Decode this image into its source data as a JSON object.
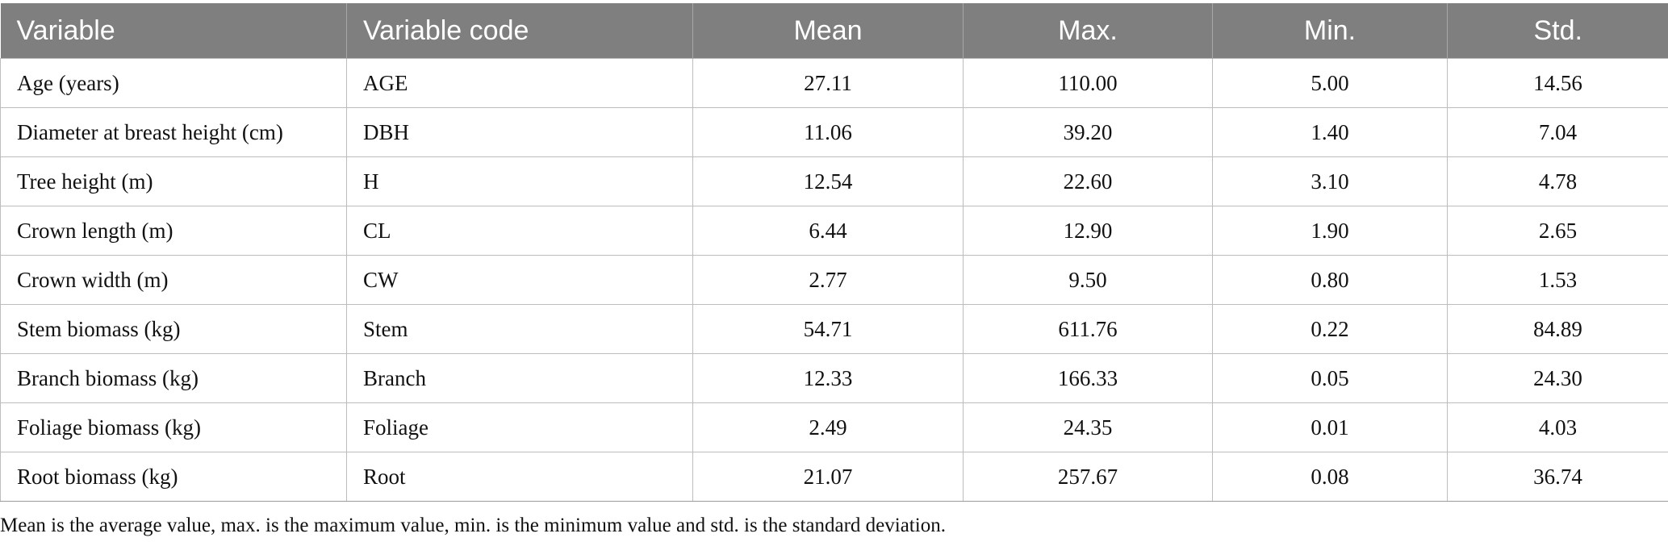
{
  "table": {
    "headers": [
      "Variable",
      "Variable code",
      "Mean",
      "Max.",
      "Min.",
      "Std."
    ],
    "rows": [
      [
        "Age (years)",
        "AGE",
        "27.11",
        "110.00",
        "5.00",
        "14.56"
      ],
      [
        "Diameter at breast height (cm)",
        "DBH",
        "11.06",
        "39.20",
        "1.40",
        "7.04"
      ],
      [
        "Tree height (m)",
        "H",
        "12.54",
        "22.60",
        "3.10",
        "4.78"
      ],
      [
        "Crown length (m)",
        "CL",
        "6.44",
        "12.90",
        "1.90",
        "2.65"
      ],
      [
        "Crown width (m)",
        "CW",
        "2.77",
        "9.50",
        "0.80",
        "1.53"
      ],
      [
        "Stem biomass (kg)",
        "Stem",
        "54.71",
        "611.76",
        "0.22",
        "84.89"
      ],
      [
        "Branch biomass (kg)",
        "Branch",
        "12.33",
        "166.33",
        "0.05",
        "24.30"
      ],
      [
        "Foliage biomass (kg)",
        "Foliage",
        "2.49",
        "24.35",
        "0.01",
        "4.03"
      ],
      [
        "Root biomass (kg)",
        "Root",
        "21.07",
        "257.67",
        "0.08",
        "36.74"
      ]
    ],
    "footnote": "Mean is the average value, max. is the maximum value, min. is the minimum value and std. is the standard deviation."
  },
  "colors": {
    "header_bg": "#7f7f7f",
    "header_text": "#ffffff",
    "grid": "#bdbdbd"
  }
}
